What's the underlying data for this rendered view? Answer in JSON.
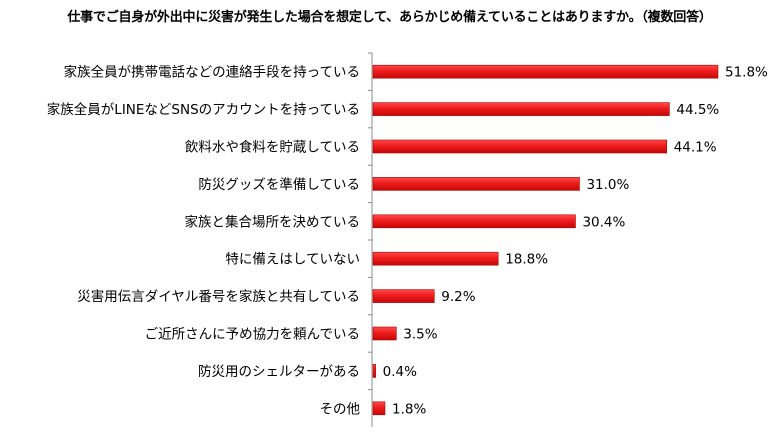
{
  "chart_data": {
    "type": "bar",
    "orientation": "horizontal",
    "title": "仕事でご自身が外出中に災害が発生した場合を想定して、あらかじめ備えていることはありますか。（複数回答）",
    "categories": [
      "家族全員が携帯電話などの連絡手段を持っている",
      "家族全員がLINEなどSNSのアカウントを持っている",
      "飲料水や食料を貯蔵している",
      "防災グッズを準備している",
      "家族と集合場所を決めている",
      "特に備えはしていない",
      "災害用伝言ダイヤル番号を家族と共有している",
      "ご近所さんに予め協力を頼んでいる",
      "防災用のシェルターがある",
      "その他"
    ],
    "values": [
      51.8,
      44.5,
      44.1,
      31.0,
      30.4,
      18.8,
      9.2,
      3.5,
      0.4,
      1.8
    ],
    "value_labels": [
      "51.8%",
      "44.5%",
      "44.1%",
      "31.0%",
      "30.4%",
      "18.8%",
      "9.2%",
      "3.5%",
      "0.4%",
      "1.8%"
    ],
    "xlim": [
      0,
      60
    ],
    "grid": false,
    "bar_color": "#ee1c1c",
    "bar_edge_color": "#b00000"
  }
}
